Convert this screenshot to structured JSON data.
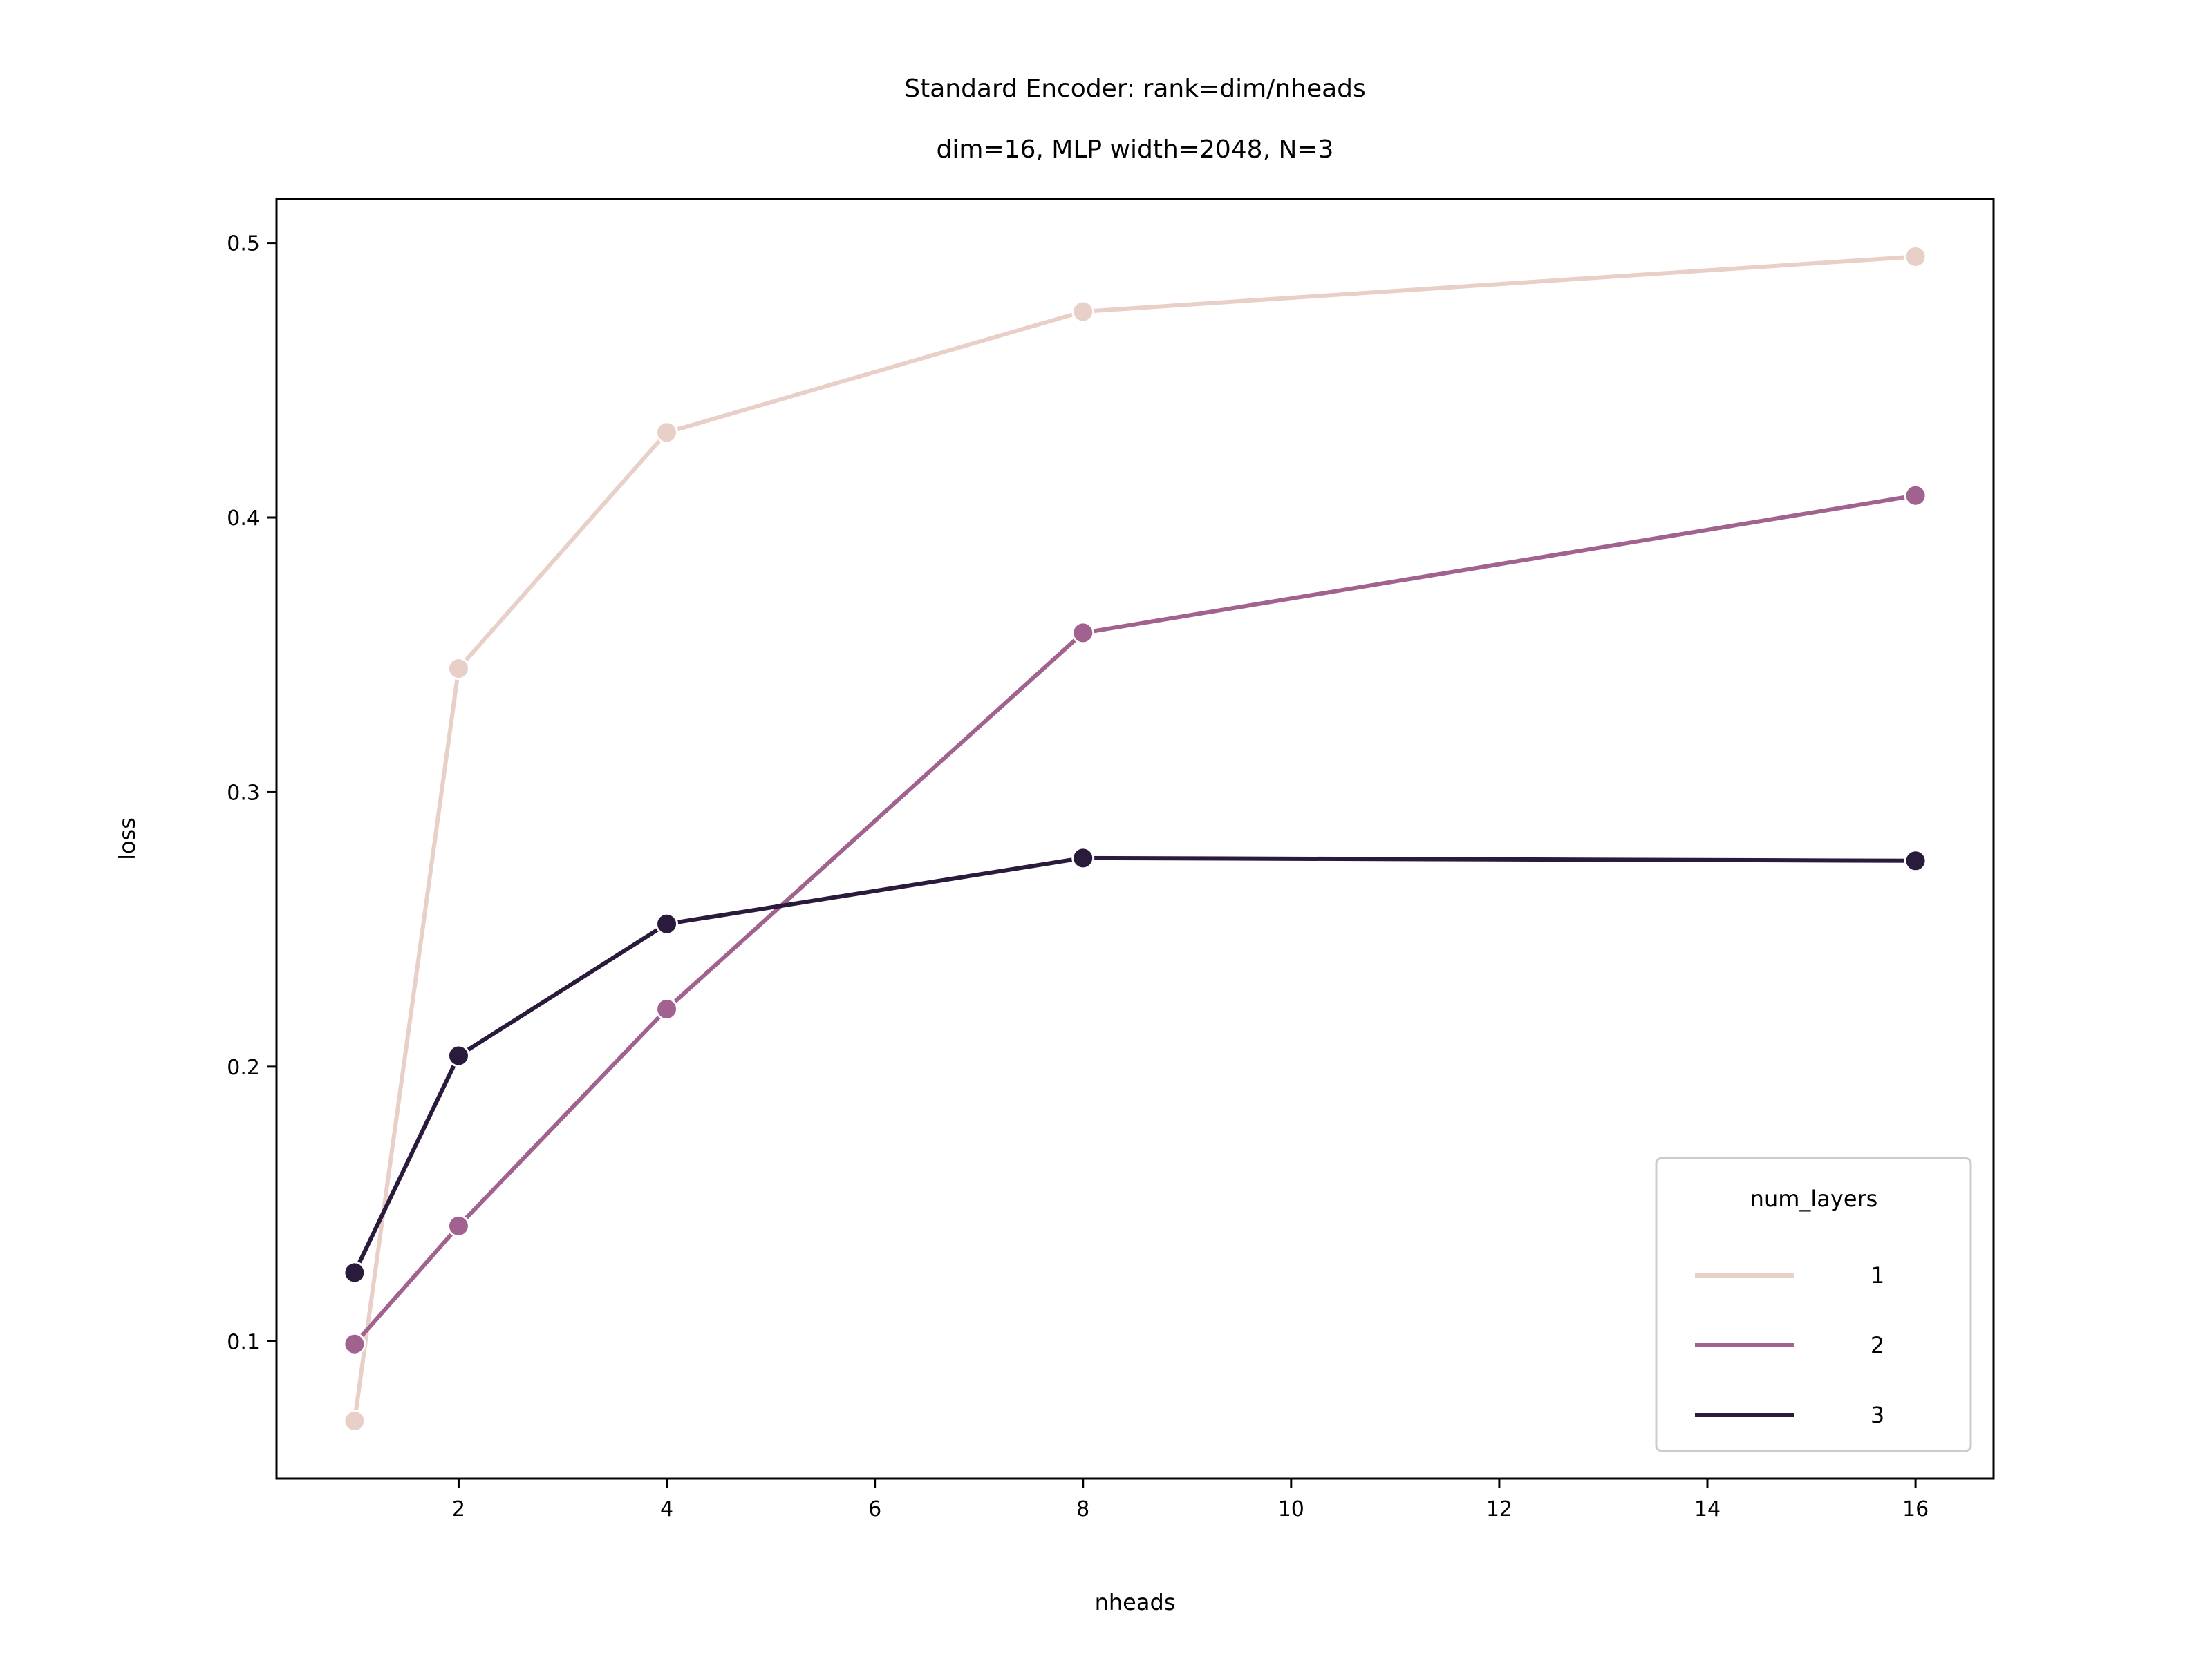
{
  "chart_data": {
    "type": "line",
    "title": "Standard Encoder: rank=dim/nheads",
    "subtitle": "dim=16, MLP width=2048, N=3",
    "xlabel": "nheads",
    "ylabel": "loss",
    "xlim": [
      0.25,
      16.75
    ],
    "ylim": [
      0.05,
      0.516
    ],
    "xticks": [
      2,
      4,
      6,
      8,
      10,
      12,
      14,
      16
    ],
    "yticks": [
      0.1,
      0.2,
      0.3,
      0.4,
      0.5
    ],
    "xtick_labels": [
      "2",
      "4",
      "6",
      "8",
      "10",
      "12",
      "14",
      "16"
    ],
    "ytick_labels": [
      "0.1",
      "0.2",
      "0.3",
      "0.4",
      "0.5"
    ],
    "grid": false,
    "legend": {
      "title": "num_layers",
      "position": "lower-right"
    },
    "x": [
      1,
      2,
      4,
      8,
      16
    ],
    "series": [
      {
        "name": "1",
        "color": "#e8cfc8",
        "values": [
          0.071,
          0.345,
          0.431,
          0.475,
          0.495
        ]
      },
      {
        "name": "2",
        "color": "#a2628f",
        "values": [
          0.099,
          0.142,
          0.221,
          0.358,
          0.408
        ]
      },
      {
        "name": "3",
        "color": "#2a1b3c",
        "values": [
          0.125,
          0.204,
          0.252,
          0.276,
          0.275
        ]
      }
    ]
  }
}
